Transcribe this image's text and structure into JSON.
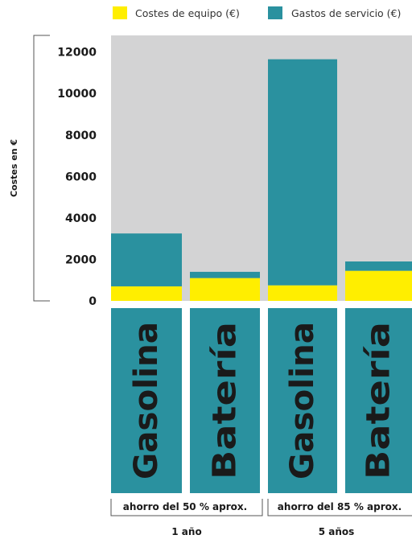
{
  "chart_data": {
    "type": "bar",
    "stacked": true,
    "categories": [
      "Gasolina",
      "Batería",
      "Gasolina",
      "Batería"
    ],
    "series": [
      {
        "name": "Costes de equipo (€)",
        "color": "#ffee00",
        "values": [
          700,
          1100,
          750,
          1450
        ]
      },
      {
        "name": "Gastos de servicio (€)",
        "color": "#2a919f",
        "values": [
          2550,
          300,
          10900,
          450
        ]
      }
    ],
    "ylabel": "Costes en €",
    "ylim": [
      0,
      12800
    ],
    "yticks": [
      0,
      2000,
      4000,
      6000,
      8000,
      10000,
      12000
    ],
    "grid": false,
    "plot_background": "#d3d3d4",
    "category_box_color": "#2a919f",
    "legend_position": "top",
    "groups": [
      {
        "label": "1 año",
        "saving": "ahorro del 50 % aprox."
      },
      {
        "label": "5 años",
        "saving": "ahorro del 85 % aprox."
      }
    ]
  }
}
